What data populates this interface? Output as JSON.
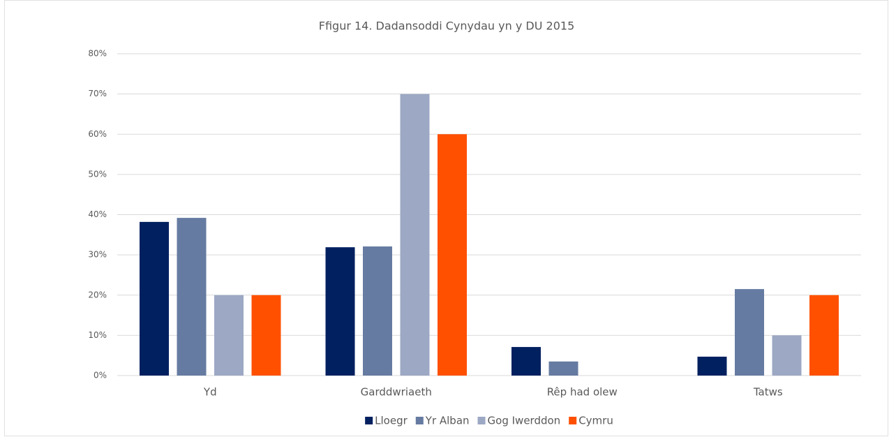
{
  "chart_data": {
    "type": "bar",
    "title": "Ffigur 14. Dadansoddi Cynydau yn y DU 2015",
    "categories": [
      "Yd",
      "Garddwriaeth",
      "Rêp had olew",
      "Tatws"
    ],
    "series": [
      {
        "name": "Lloegr",
        "color": "#002060",
        "values": [
          38.2,
          31.9,
          7.1,
          4.7
        ]
      },
      {
        "name": "Yr Alban",
        "color": "#667ba1",
        "values": [
          39.2,
          32.1,
          3.5,
          21.5
        ]
      },
      {
        "name": "Gog Iwerddon",
        "color": "#9ca8c4",
        "values": [
          20,
          70,
          0,
          10
        ]
      },
      {
        "name": "Cymru",
        "color": "#ff5000",
        "values": [
          20,
          60,
          0,
          20
        ]
      }
    ],
    "ylim": [
      0,
      80
    ],
    "yticks": [
      {
        "value": 0,
        "label": "0%"
      },
      {
        "value": 10,
        "label": "10%"
      },
      {
        "value": 20,
        "label": "20%"
      },
      {
        "value": 30,
        "label": "30%"
      },
      {
        "value": 40,
        "label": "40%"
      },
      {
        "value": 50,
        "label": "50%"
      },
      {
        "value": 60,
        "label": "60%"
      },
      {
        "value": 70,
        "label": "70%"
      },
      {
        "value": 80,
        "label": "80%"
      }
    ],
    "grid": true,
    "legend": "bottom"
  }
}
